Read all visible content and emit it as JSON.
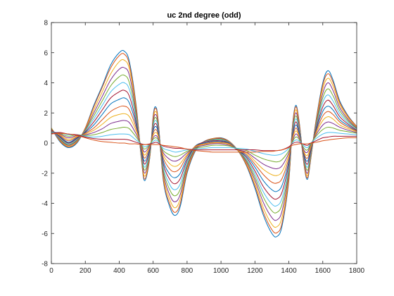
{
  "chart_data": {
    "type": "line",
    "title": "uc 2nd degree (odd)",
    "xlabel": "",
    "ylabel": "",
    "xlim": [
      0,
      1800
    ],
    "ylim": [
      -8,
      8
    ],
    "x_ticks": [
      0,
      200,
      400,
      600,
      800,
      1000,
      1200,
      1400,
      1600,
      1800
    ],
    "y_ticks": [
      -8,
      -6,
      -4,
      -2,
      0,
      2,
      4,
      6,
      8
    ],
    "x_tick_labels": [
      "0",
      "200",
      "400",
      "600",
      "800",
      "1000",
      "1200",
      "1400",
      "1600",
      "1800"
    ],
    "y_tick_labels": [
      "-8",
      "-6",
      "-4",
      "-2",
      "0",
      "2",
      "4",
      "6",
      "8"
    ],
    "grid": false,
    "box": true,
    "x": [
      0,
      50,
      100,
      150,
      200,
      250,
      300,
      350,
      400,
      430,
      460,
      500,
      530,
      550,
      580,
      600,
      615,
      630,
      660,
      700,
      730,
      760,
      800,
      850,
      900,
      950,
      1000,
      1050,
      1100,
      1150,
      1200,
      1250,
      1300,
      1330,
      1360,
      1400,
      1420,
      1440,
      1460,
      1490,
      1510,
      1530,
      1560,
      1600,
      1630,
      1660,
      1700,
      1750,
      1800
    ],
    "series": [
      {
        "color": "#0072BD",
        "values": [
          1.0,
          0.1,
          -0.3,
          0.0,
          1.0,
          2.5,
          3.8,
          5.2,
          6.0,
          6.1,
          5.4,
          2.5,
          -1.0,
          -2.5,
          -1.0,
          1.8,
          2.4,
          1.5,
          -2.5,
          -4.3,
          -4.8,
          -4.2,
          -2.0,
          -0.5,
          0.1,
          0.3,
          0.35,
          0.1,
          -0.5,
          -1.5,
          -3.0,
          -4.8,
          -6.0,
          -6.2,
          -5.5,
          -2.5,
          1.0,
          2.5,
          1.5,
          -1.5,
          -2.4,
          -1.0,
          1.5,
          4.0,
          4.8,
          4.2,
          2.8,
          1.8,
          1.1
        ]
      },
      {
        "color": "#D95319",
        "values": [
          1.0,
          0.15,
          -0.25,
          0.05,
          1.0,
          2.4,
          3.7,
          5.0,
          5.8,
          5.9,
          5.2,
          2.4,
          -0.95,
          -2.4,
          -0.95,
          1.7,
          2.3,
          1.45,
          -2.4,
          -4.1,
          -4.6,
          -4.0,
          -1.9,
          -0.45,
          0.1,
          0.3,
          0.33,
          0.1,
          -0.5,
          -1.45,
          -2.85,
          -4.6,
          -5.75,
          -5.95,
          -5.3,
          -2.4,
          0.95,
          2.4,
          1.45,
          -1.45,
          -2.3,
          -0.95,
          1.45,
          3.85,
          4.6,
          4.05,
          2.7,
          1.75,
          1.1
        ]
      },
      {
        "color": "#EDB120",
        "values": [
          1.0,
          0.2,
          -0.2,
          0.1,
          0.95,
          2.2,
          3.4,
          4.6,
          5.4,
          5.5,
          4.9,
          2.2,
          -0.9,
          -2.2,
          -0.9,
          1.5,
          2.1,
          1.3,
          -2.2,
          -3.8,
          -4.3,
          -3.7,
          -1.75,
          -0.4,
          0.1,
          0.28,
          0.3,
          0.08,
          -0.5,
          -1.35,
          -2.65,
          -4.3,
          -5.4,
          -5.55,
          -4.9,
          -2.2,
          0.85,
          2.2,
          1.3,
          -1.35,
          -2.15,
          -0.9,
          1.35,
          3.6,
          4.3,
          3.8,
          2.55,
          1.65,
          1.05
        ]
      },
      {
        "color": "#7E2F8E",
        "values": [
          0.95,
          0.25,
          -0.15,
          0.15,
          0.9,
          2.0,
          3.1,
          4.2,
          4.9,
          5.0,
          4.5,
          2.0,
          -0.8,
          -2.0,
          -0.8,
          1.4,
          1.9,
          1.2,
          -2.0,
          -3.5,
          -3.9,
          -3.4,
          -1.6,
          -0.35,
          0.1,
          0.25,
          0.28,
          0.06,
          -0.5,
          -1.25,
          -2.45,
          -3.95,
          -4.95,
          -5.1,
          -4.5,
          -2.0,
          0.8,
          2.0,
          1.2,
          -1.25,
          -2.0,
          -0.8,
          1.25,
          3.3,
          4.0,
          3.5,
          2.35,
          1.55,
          1.0
        ]
      },
      {
        "color": "#77AC30",
        "values": [
          0.95,
          0.3,
          -0.1,
          0.2,
          0.85,
          1.8,
          2.8,
          3.8,
          4.4,
          4.5,
          4.0,
          1.8,
          -0.7,
          -1.8,
          -0.7,
          1.25,
          1.7,
          1.05,
          -1.8,
          -3.15,
          -3.5,
          -3.05,
          -1.45,
          -0.3,
          0.08,
          0.22,
          0.25,
          0.04,
          -0.5,
          -1.15,
          -2.25,
          -3.6,
          -4.5,
          -4.6,
          -4.05,
          -1.8,
          0.7,
          1.8,
          1.05,
          -1.1,
          -1.8,
          -0.7,
          1.15,
          3.0,
          3.6,
          3.15,
          2.15,
          1.45,
          0.95
        ]
      },
      {
        "color": "#4DBEEE",
        "values": [
          0.9,
          0.35,
          -0.05,
          0.25,
          0.8,
          1.6,
          2.5,
          3.4,
          3.9,
          4.0,
          3.55,
          1.6,
          -0.6,
          -1.6,
          -0.6,
          1.1,
          1.5,
          0.95,
          -1.6,
          -2.8,
          -3.1,
          -2.7,
          -1.3,
          -0.25,
          0.06,
          0.18,
          0.2,
          0.02,
          -0.5,
          -1.05,
          -2.05,
          -3.25,
          -4.05,
          -4.15,
          -3.65,
          -1.6,
          0.6,
          1.6,
          0.95,
          -1.0,
          -1.6,
          -0.6,
          1.05,
          2.7,
          3.2,
          2.8,
          1.95,
          1.35,
          0.9
        ]
      },
      {
        "color": "#A2142F",
        "values": [
          0.9,
          0.4,
          0.0,
          0.3,
          0.75,
          1.4,
          2.2,
          3.0,
          3.4,
          3.5,
          3.1,
          1.4,
          -0.5,
          -1.4,
          -0.5,
          0.95,
          1.3,
          0.8,
          -1.4,
          -2.45,
          -2.7,
          -2.35,
          -1.15,
          -0.2,
          0.05,
          0.15,
          0.15,
          0.0,
          -0.5,
          -0.95,
          -1.85,
          -2.9,
          -3.6,
          -3.7,
          -3.25,
          -1.4,
          0.5,
          1.4,
          0.8,
          -0.9,
          -1.4,
          -0.5,
          0.95,
          2.4,
          2.85,
          2.5,
          1.75,
          1.25,
          0.85
        ]
      },
      {
        "color": "#0072BD",
        "values": [
          0.85,
          0.45,
          0.05,
          0.35,
          0.7,
          1.2,
          1.9,
          2.6,
          2.9,
          3.0,
          2.65,
          1.2,
          -0.4,
          -1.2,
          -0.4,
          0.8,
          1.1,
          0.7,
          -1.2,
          -2.1,
          -2.3,
          -2.0,
          -1.0,
          -0.18,
          0.0,
          0.1,
          0.1,
          -0.02,
          -0.5,
          -0.85,
          -1.6,
          -2.5,
          -3.1,
          -3.2,
          -2.8,
          -1.2,
          0.4,
          1.2,
          0.7,
          -0.8,
          -1.2,
          -0.4,
          0.85,
          2.1,
          2.45,
          2.2,
          1.55,
          1.15,
          0.8
        ]
      },
      {
        "color": "#D95319",
        "values": [
          0.85,
          0.5,
          0.15,
          0.4,
          0.65,
          1.0,
          1.55,
          2.1,
          2.4,
          2.45,
          2.2,
          1.0,
          -0.3,
          -1.0,
          -0.3,
          0.65,
          0.9,
          0.55,
          -1.0,
          -1.75,
          -1.9,
          -1.65,
          -0.85,
          -0.2,
          -0.05,
          0.05,
          0.05,
          -0.05,
          -0.5,
          -0.75,
          -1.4,
          -2.1,
          -2.6,
          -2.65,
          -2.35,
          -1.0,
          0.3,
          1.0,
          0.55,
          -0.7,
          -1.0,
          -0.3,
          0.75,
          1.8,
          2.1,
          1.9,
          1.4,
          1.05,
          0.8
        ]
      },
      {
        "color": "#EDB120",
        "values": [
          0.8,
          0.55,
          0.25,
          0.45,
          0.6,
          0.85,
          1.25,
          1.7,
          1.9,
          1.95,
          1.75,
          0.8,
          -0.2,
          -0.8,
          -0.2,
          0.5,
          0.7,
          0.45,
          -0.8,
          -1.4,
          -1.55,
          -1.35,
          -0.75,
          -0.25,
          -0.1,
          0.0,
          0.0,
          -0.1,
          -0.5,
          -0.65,
          -1.2,
          -1.75,
          -2.1,
          -2.15,
          -1.9,
          -0.8,
          0.2,
          0.8,
          0.45,
          -0.6,
          -0.8,
          -0.2,
          0.65,
          1.5,
          1.75,
          1.6,
          1.2,
          0.95,
          0.75
        ]
      },
      {
        "color": "#7E2F8E",
        "values": [
          0.8,
          0.6,
          0.35,
          0.5,
          0.55,
          0.7,
          0.95,
          1.3,
          1.45,
          1.5,
          1.35,
          0.6,
          -0.15,
          -0.6,
          -0.15,
          0.35,
          0.5,
          0.3,
          -0.65,
          -1.1,
          -1.2,
          -1.05,
          -0.65,
          -0.3,
          -0.15,
          -0.05,
          -0.05,
          -0.15,
          -0.45,
          -0.6,
          -1.0,
          -1.4,
          -1.65,
          -1.7,
          -1.5,
          -0.65,
          0.1,
          0.6,
          0.35,
          -0.5,
          -0.6,
          -0.1,
          0.55,
          1.2,
          1.4,
          1.3,
          1.05,
          0.85,
          0.7
        ]
      },
      {
        "color": "#77AC30",
        "values": [
          0.75,
          0.65,
          0.45,
          0.55,
          0.5,
          0.55,
          0.7,
          0.9,
          1.0,
          1.05,
          0.95,
          0.4,
          -0.1,
          -0.4,
          -0.1,
          0.25,
          0.35,
          0.2,
          -0.5,
          -0.8,
          -0.9,
          -0.8,
          -0.55,
          -0.35,
          -0.25,
          -0.15,
          -0.15,
          -0.2,
          -0.4,
          -0.5,
          -0.8,
          -1.05,
          -1.2,
          -1.25,
          -1.1,
          -0.5,
          0.05,
          0.4,
          0.25,
          -0.35,
          -0.45,
          -0.05,
          0.45,
          0.9,
          1.05,
          1.0,
          0.85,
          0.75,
          0.65
        ]
      },
      {
        "color": "#4DBEEE",
        "values": [
          0.7,
          0.7,
          0.55,
          0.55,
          0.45,
          0.4,
          0.45,
          0.55,
          0.6,
          0.6,
          0.55,
          0.2,
          -0.05,
          -0.25,
          -0.1,
          0.1,
          0.2,
          0.1,
          -0.35,
          -0.5,
          -0.6,
          -0.55,
          -0.45,
          -0.4,
          -0.35,
          -0.3,
          -0.3,
          -0.3,
          -0.35,
          -0.4,
          -0.55,
          -0.7,
          -0.8,
          -0.8,
          -0.7,
          -0.35,
          0.0,
          0.2,
          0.15,
          -0.2,
          -0.3,
          0.0,
          0.3,
          0.6,
          0.7,
          0.7,
          0.65,
          0.6,
          0.55
        ]
      },
      {
        "color": "#A2142F",
        "values": [
          0.65,
          0.7,
          0.6,
          0.55,
          0.4,
          0.3,
          0.25,
          0.25,
          0.25,
          0.25,
          0.2,
          0.05,
          -0.05,
          -0.1,
          -0.05,
          0.0,
          0.05,
          0.0,
          -0.2,
          -0.3,
          -0.35,
          -0.35,
          -0.4,
          -0.45,
          -0.45,
          -0.45,
          -0.45,
          -0.45,
          -0.45,
          -0.45,
          -0.45,
          -0.5,
          -0.5,
          -0.5,
          -0.45,
          -0.25,
          -0.05,
          0.05,
          0.05,
          -0.1,
          -0.15,
          0.0,
          0.15,
          0.35,
          0.4,
          0.45,
          0.45,
          0.45,
          0.45
        ]
      },
      {
        "color": "#D95319",
        "values": [
          0.6,
          0.65,
          0.6,
          0.5,
          0.35,
          0.2,
          0.1,
          0.05,
          0.0,
          0.0,
          -0.05,
          -0.05,
          -0.1,
          -0.1,
          -0.1,
          -0.1,
          -0.1,
          -0.1,
          -0.15,
          -0.2,
          -0.25,
          -0.3,
          -0.4,
          -0.5,
          -0.55,
          -0.6,
          -0.6,
          -0.6,
          -0.6,
          -0.6,
          -0.6,
          -0.55,
          -0.55,
          -0.5,
          -0.45,
          -0.3,
          -0.15,
          -0.1,
          -0.05,
          -0.05,
          -0.05,
          0.0,
          0.05,
          0.15,
          0.2,
          0.25,
          0.3,
          0.35,
          0.35
        ]
      }
    ]
  }
}
